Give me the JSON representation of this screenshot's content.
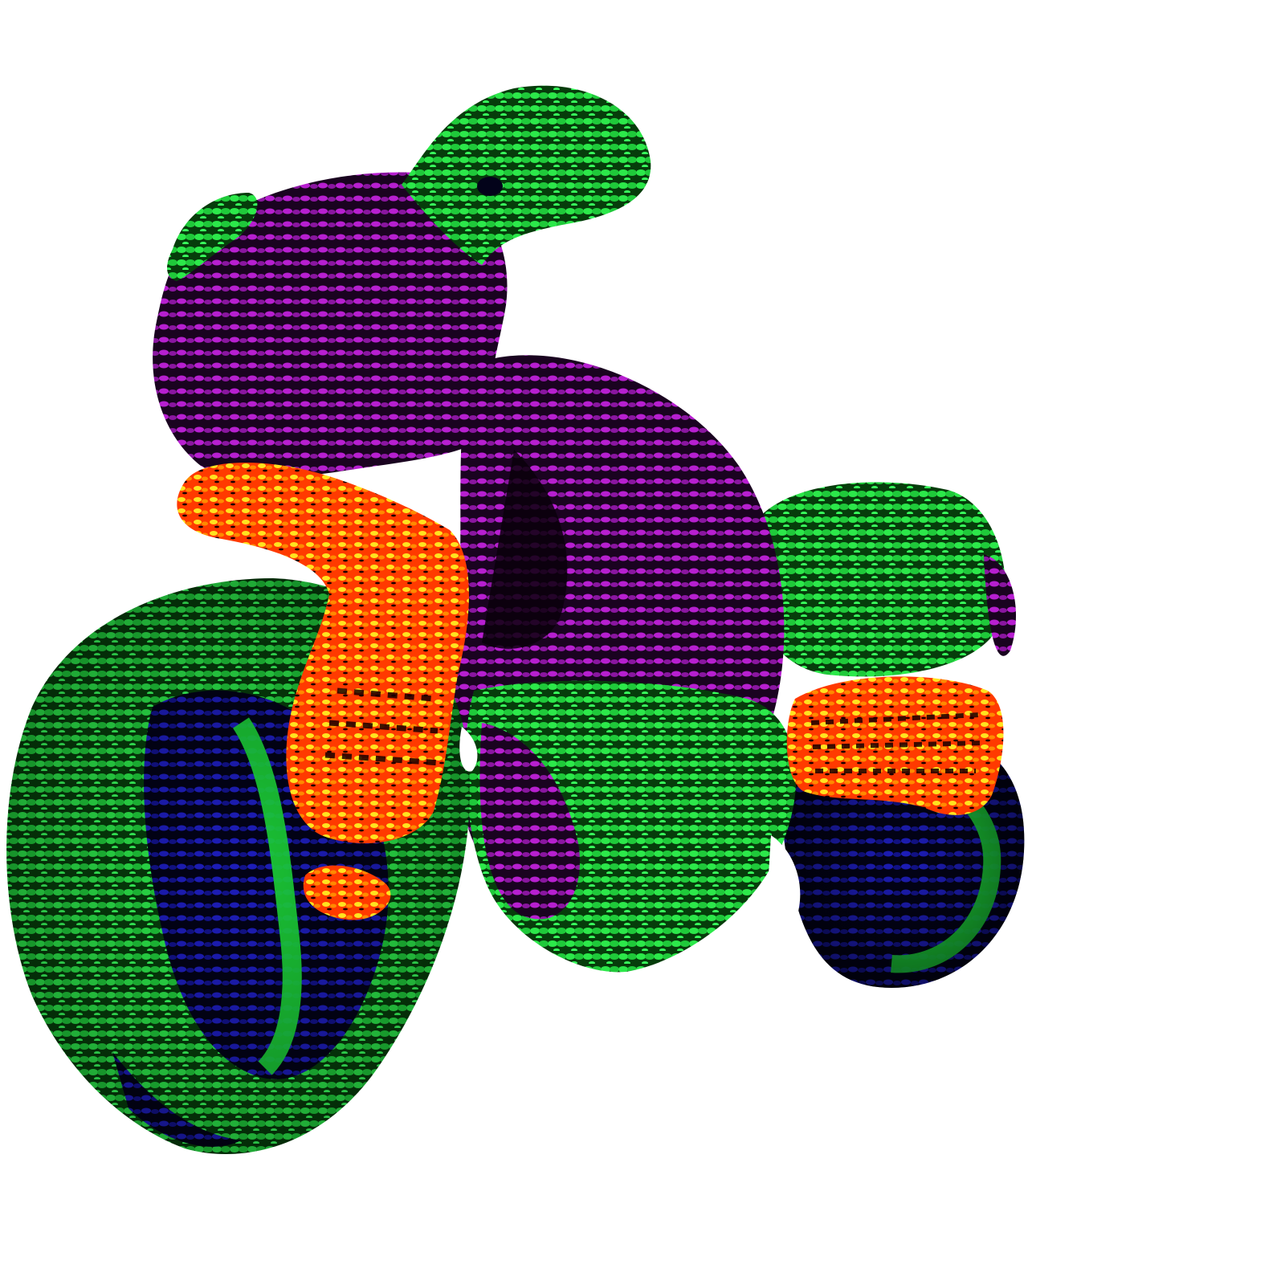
{
  "scene": {
    "background": "#ffffff",
    "subject": "crocheted-toy-motorcycle",
    "colors": {
      "green": "#22e13a",
      "purple": "#b418c8",
      "blue": "#1a1ab8",
      "orange": "#ff6a00",
      "yellow": "#ffe21a",
      "red": "#ff1a1a",
      "dark": "#050505"
    }
  }
}
